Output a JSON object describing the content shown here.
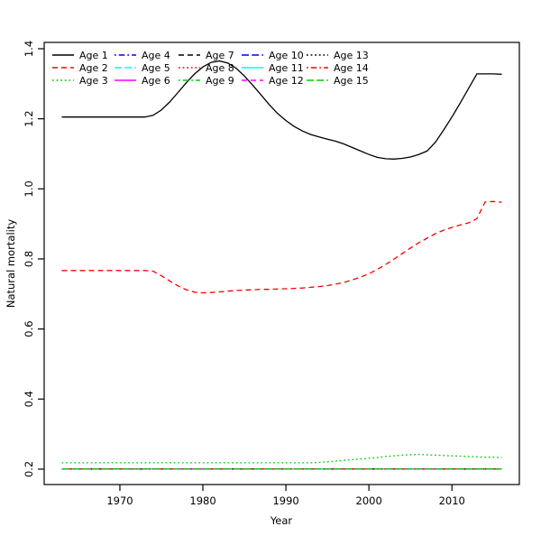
{
  "figure": {
    "background": "#ffffff",
    "text_color": "#000000"
  },
  "chart_data": {
    "type": "line",
    "title": "",
    "xlabel": "Year",
    "ylabel": "Natural mortality",
    "x_ticks": [
      1970,
      1980,
      1990,
      2000,
      2010
    ],
    "y_ticks": [
      "0.2",
      "0.4",
      "0.6",
      "0.8",
      "1.0",
      "1.2",
      "1.4"
    ],
    "xlim": [
      1960.88,
      2018.12
    ],
    "ylim": [
      0.156,
      1.418
    ],
    "grid": false,
    "legend": {
      "position": "top-left",
      "columns": 5,
      "rows": 3,
      "border": false
    },
    "years": [
      1963,
      1964,
      1965,
      1966,
      1967,
      1968,
      1969,
      1970,
      1971,
      1972,
      1973,
      1974,
      1975,
      1976,
      1977,
      1978,
      1979,
      1980,
      1981,
      1982,
      1983,
      1984,
      1985,
      1986,
      1987,
      1988,
      1989,
      1990,
      1991,
      1992,
      1993,
      1994,
      1995,
      1996,
      1997,
      1998,
      1999,
      2000,
      2001,
      2002,
      2003,
      2004,
      2005,
      2006,
      2007,
      2008,
      2009,
      2010,
      2011,
      2012,
      2013,
      2014,
      2015,
      2016
    ],
    "series": [
      {
        "name": "Age 1",
        "color": "#000000",
        "lty": "solid",
        "values": [
          1.205,
          1.205,
          1.205,
          1.205,
          1.205,
          1.205,
          1.205,
          1.205,
          1.205,
          1.205,
          1.205,
          1.21,
          1.225,
          1.248,
          1.275,
          1.303,
          1.328,
          1.348,
          1.361,
          1.365,
          1.359,
          1.344,
          1.322,
          1.296,
          1.268,
          1.24,
          1.215,
          1.195,
          1.178,
          1.165,
          1.155,
          1.148,
          1.142,
          1.136,
          1.128,
          1.118,
          1.108,
          1.098,
          1.09,
          1.086,
          1.085,
          1.087,
          1.091,
          1.098,
          1.108,
          1.133,
          1.168,
          1.205,
          1.245,
          1.287,
          1.328,
          1.328,
          1.328,
          1.327
        ]
      },
      {
        "name": "Age 2",
        "color": "#FF0000",
        "lty": "dashed",
        "values": [
          0.767,
          0.767,
          0.767,
          0.767,
          0.767,
          0.767,
          0.767,
          0.767,
          0.767,
          0.767,
          0.767,
          0.765,
          0.752,
          0.737,
          0.723,
          0.712,
          0.705,
          0.703,
          0.704,
          0.706,
          0.708,
          0.71,
          0.711,
          0.712,
          0.713,
          0.713,
          0.714,
          0.715,
          0.716,
          0.717,
          0.719,
          0.721,
          0.724,
          0.728,
          0.733,
          0.74,
          0.748,
          0.758,
          0.77,
          0.784,
          0.799,
          0.815,
          0.831,
          0.846,
          0.859,
          0.872,
          0.882,
          0.89,
          0.897,
          0.903,
          0.915,
          0.963,
          0.964,
          0.962
        ]
      },
      {
        "name": "Age 3",
        "color": "#00CD00",
        "lty": "dotted",
        "values": [
          0.218,
          0.218,
          0.218,
          0.218,
          0.218,
          0.218,
          0.218,
          0.218,
          0.218,
          0.218,
          0.218,
          0.218,
          0.218,
          0.218,
          0.218,
          0.218,
          0.218,
          0.218,
          0.218,
          0.218,
          0.218,
          0.218,
          0.218,
          0.218,
          0.218,
          0.218,
          0.218,
          0.218,
          0.218,
          0.218,
          0.218,
          0.219,
          0.221,
          0.223,
          0.225,
          0.227,
          0.229,
          0.231,
          0.233,
          0.236,
          0.238,
          0.24,
          0.241,
          0.242,
          0.241,
          0.24,
          0.239,
          0.238,
          0.237,
          0.236,
          0.235,
          0.234,
          0.234,
          0.233
        ]
      },
      {
        "name": "Age 4",
        "color": "#0000FF",
        "lty": "dotdash",
        "constant": 0.2
      },
      {
        "name": "Age 5",
        "color": "#00FFFF",
        "lty": "longdash",
        "constant": 0.2
      },
      {
        "name": "Age 6",
        "color": "#FF00FF",
        "lty": "solid",
        "constant": 0.2
      },
      {
        "name": "Age 7",
        "color": "#000000",
        "lty": "dashed",
        "constant": 0.2
      },
      {
        "name": "Age 8",
        "color": "#FF0000",
        "lty": "dotted",
        "constant": 0.2
      },
      {
        "name": "Age 9",
        "color": "#00CD00",
        "lty": "dotdash",
        "constant": 0.2
      },
      {
        "name": "Age 10",
        "color": "#0000FF",
        "lty": "longdash",
        "constant": 0.2
      },
      {
        "name": "Age 11",
        "color": "#00FFFF",
        "lty": "solid",
        "constant": 0.2
      },
      {
        "name": "Age 12",
        "color": "#FF00FF",
        "lty": "dashed",
        "constant": 0.2
      },
      {
        "name": "Age 13",
        "color": "#000000",
        "lty": "dotted",
        "constant": 0.2
      },
      {
        "name": "Age 14",
        "color": "#FF0000",
        "lty": "dotdash",
        "constant": 0.2
      },
      {
        "name": "Age 15",
        "color": "#00CD00",
        "lty": "longdash",
        "constant": 0.2
      }
    ]
  }
}
